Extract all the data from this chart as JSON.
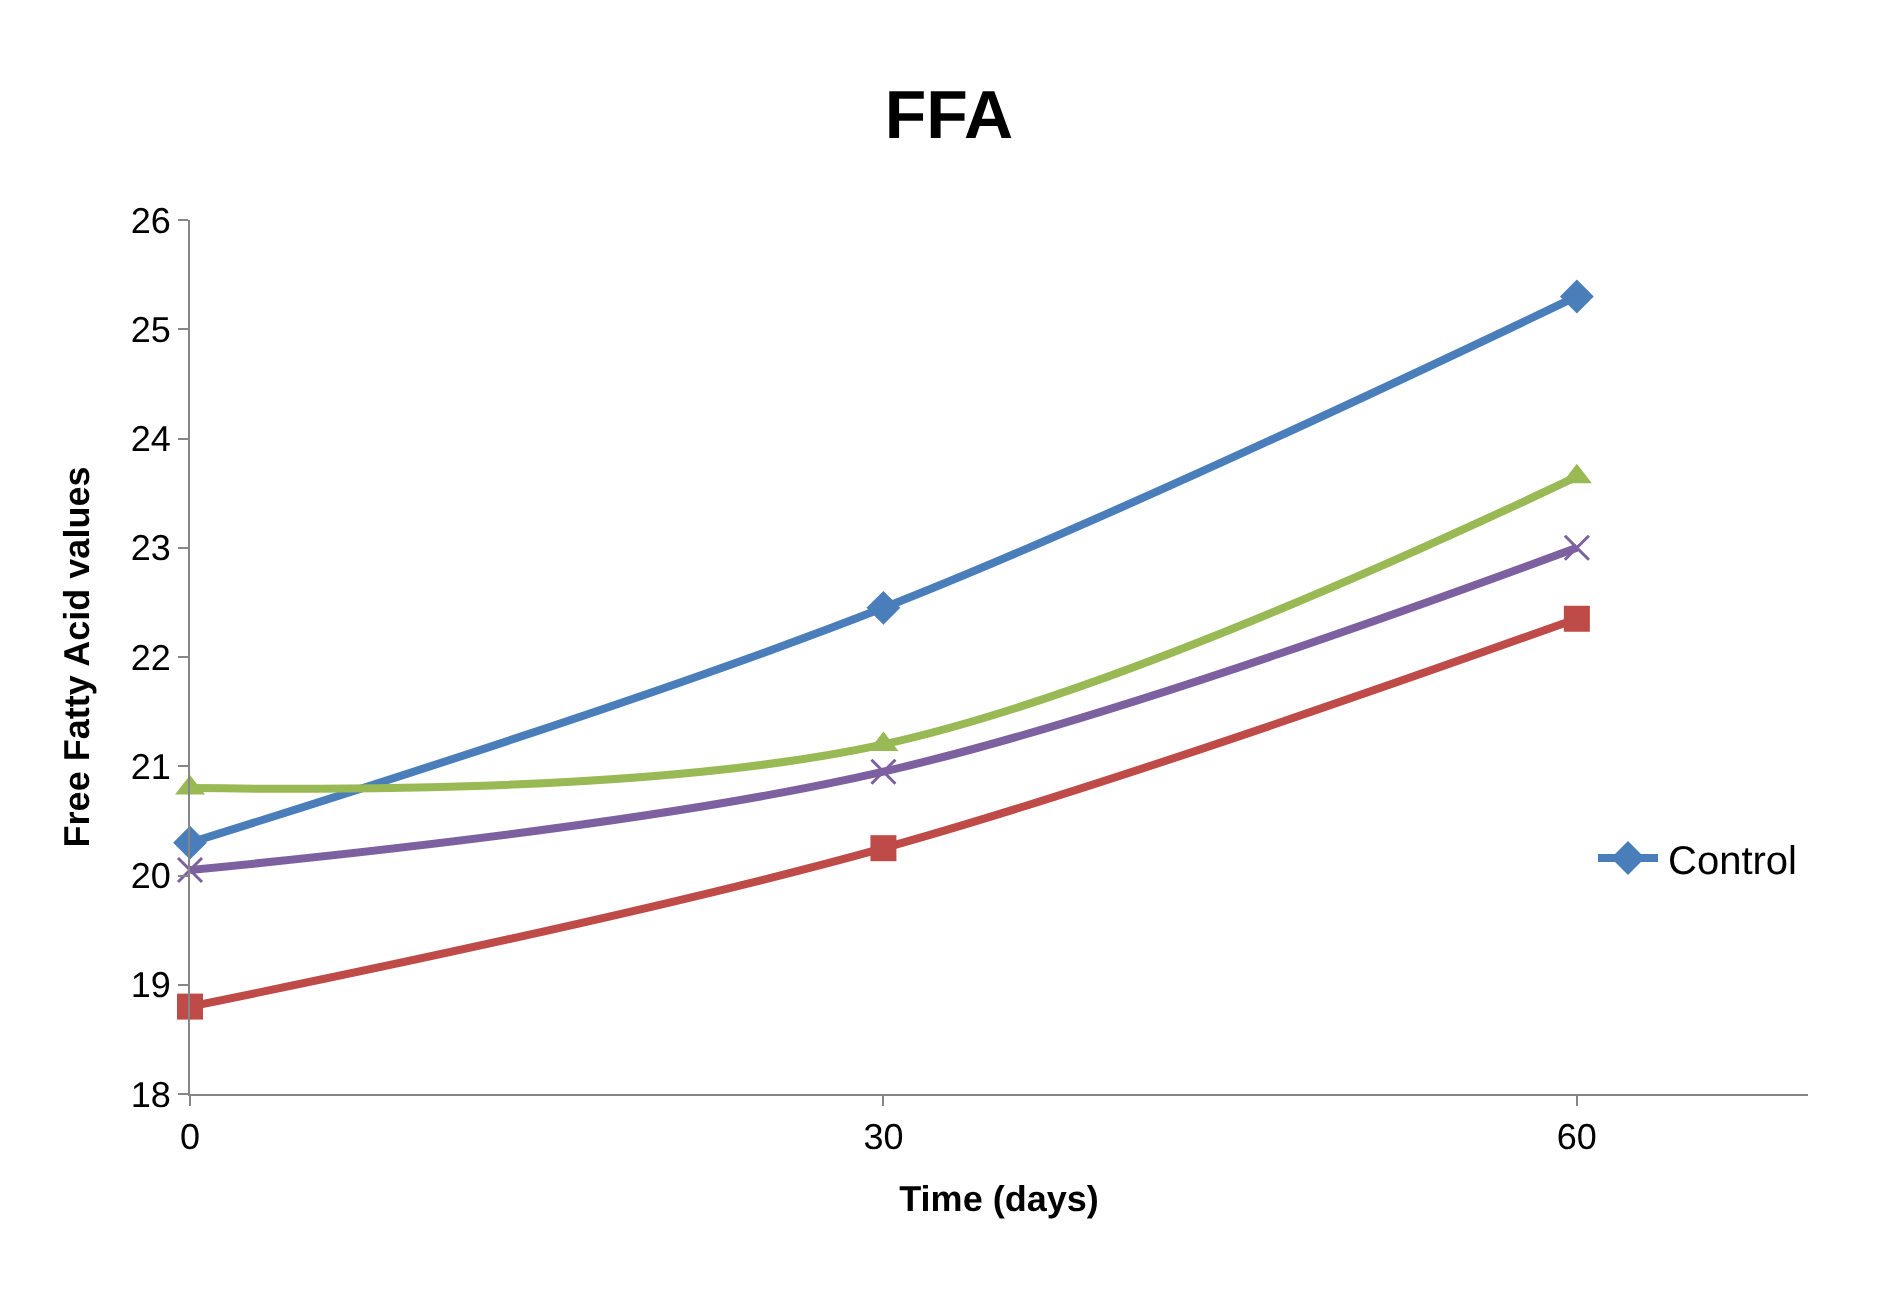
{
  "chart_data": {
    "type": "line",
    "title": "FFA",
    "xlabel": "Time (days)",
    "ylabel": "Free Fatty Acid values",
    "x": [
      0,
      30,
      60
    ],
    "xlim": [
      0,
      70
    ],
    "xticks": [
      0,
      30,
      60
    ],
    "ylim": [
      18,
      26
    ],
    "yticks": [
      18,
      19,
      20,
      21,
      22,
      23,
      24,
      25,
      26
    ],
    "legend": "right",
    "line_style": "solid",
    "series": [
      {
        "name": "Control",
        "color": "#4a7ebb",
        "marker": "diamond",
        "values": [
          20.3,
          22.45,
          25.3
        ]
      },
      {
        "color": "#be4b48",
        "marker": "square",
        "values": [
          18.8,
          20.25,
          22.35
        ]
      },
      {
        "color": "#98b954",
        "marker": "triangle",
        "values": [
          20.8,
          21.2,
          23.65
        ]
      },
      {
        "color": "#7d60a0",
        "marker": "cross",
        "values": [
          20.05,
          20.95,
          23.0
        ]
      }
    ]
  }
}
